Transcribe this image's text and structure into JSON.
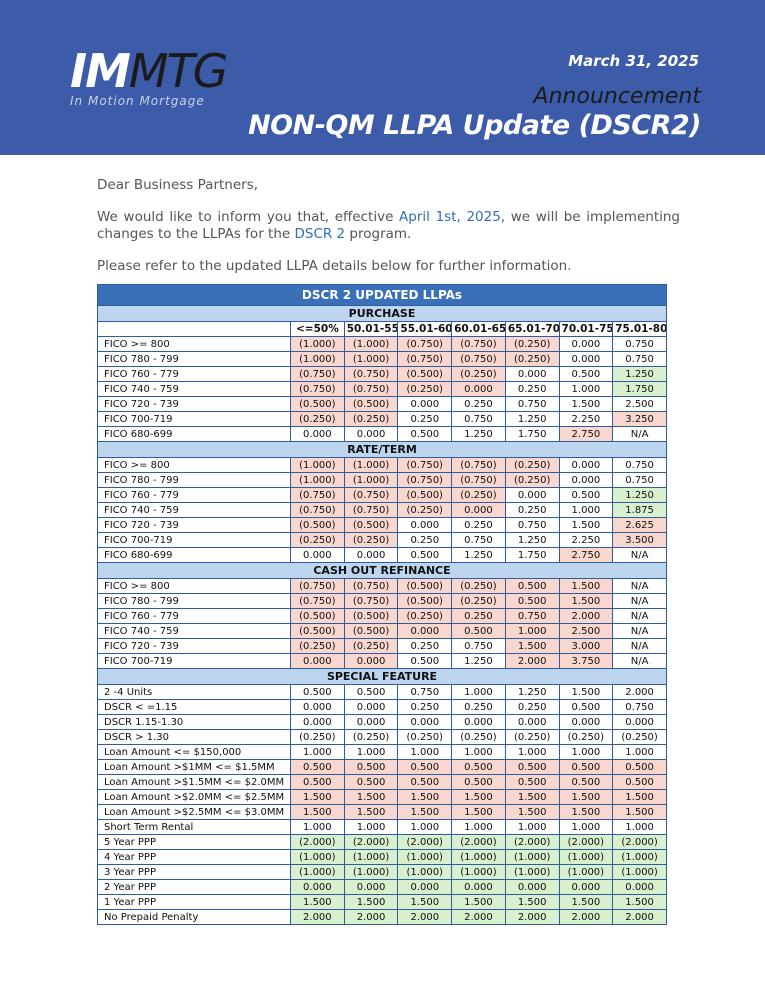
{
  "header": {
    "logo_main": "IM",
    "logo_accent": "MTG",
    "logo_tagline": "In Motion Mortgage",
    "date": "March 31, 2025",
    "announcement": "Announcement",
    "title": "NON-QM LLPA Update (DSCR2)"
  },
  "letter": {
    "greeting": "Dear Business Partners,",
    "p2_a": "We would like to inform you that, effective ",
    "p2_date": "April 1st, 2025",
    "p2_b": ", we will be implementing changes to the LLPAs for the ",
    "p2_program": "DSCR 2",
    "p2_c": " program.",
    "p3": "Please refer to the updated LLPA details below for further information."
  },
  "table": {
    "title": "DSCR 2 UPDATED LLPAs",
    "columns": [
      "",
      "<=50%",
      "50.01-55",
      "55.01-60",
      "60.01-65",
      "65.01-70",
      "70.01-75",
      "75.01-80"
    ],
    "sections": [
      {
        "name": "PURCHASE",
        "rows": [
          {
            "label": "FICO >= 800",
            "v": [
              "(1.000)",
              "(1.000)",
              "(0.750)",
              "(0.750)",
              "(0.250)",
              "0.000",
              "0.750"
            ],
            "h": [
              "r",
              "r",
              "r",
              "r",
              "r",
              "",
              ""
            ]
          },
          {
            "label": "FICO 780 - 799",
            "v": [
              "(1.000)",
              "(1.000)",
              "(0.750)",
              "(0.750)",
              "(0.250)",
              "0.000",
              "0.750"
            ],
            "h": [
              "r",
              "r",
              "r",
              "r",
              "r",
              "",
              ""
            ]
          },
          {
            "label": "FICO 760 - 779",
            "v": [
              "(0.750)",
              "(0.750)",
              "(0.500)",
              "(0.250)",
              "0.000",
              "0.500",
              "1.250"
            ],
            "h": [
              "r",
              "r",
              "r",
              "r",
              "",
              "",
              "g"
            ]
          },
          {
            "label": "FICO 740 - 759",
            "v": [
              "(0.750)",
              "(0.750)",
              "(0.250)",
              "0.000",
              "0.250",
              "1.000",
              "1.750"
            ],
            "h": [
              "r",
              "r",
              "r",
              "r",
              "",
              "",
              "g"
            ]
          },
          {
            "label": "FICO 720 - 739",
            "v": [
              "(0.500)",
              "(0.500)",
              "0.000",
              "0.250",
              "0.750",
              "1.500",
              "2.500"
            ],
            "h": [
              "r",
              "r",
              "",
              "",
              "",
              "",
              ""
            ]
          },
          {
            "label": "FICO 700-719",
            "v": [
              "(0.250)",
              "(0.250)",
              "0.250",
              "0.750",
              "1.250",
              "2.250",
              "3.250"
            ],
            "h": [
              "r",
              "r",
              "",
              "",
              "",
              "",
              "r"
            ]
          },
          {
            "label": "FICO 680-699",
            "v": [
              "0.000",
              "0.000",
              "0.500",
              "1.250",
              "1.750",
              "2.750",
              "N/A"
            ],
            "h": [
              "",
              "",
              "",
              "",
              "",
              "r",
              ""
            ]
          }
        ]
      },
      {
        "name": "RATE/TERM",
        "rows": [
          {
            "label": "FICO >= 800",
            "v": [
              "(1.000)",
              "(1.000)",
              "(0.750)",
              "(0.750)",
              "(0.250)",
              "0.000",
              "0.750"
            ],
            "h": [
              "r",
              "r",
              "r",
              "r",
              "r",
              "",
              ""
            ]
          },
          {
            "label": "FICO 780 - 799",
            "v": [
              "(1.000)",
              "(1.000)",
              "(0.750)",
              "(0.750)",
              "(0.250)",
              "0.000",
              "0.750"
            ],
            "h": [
              "r",
              "r",
              "r",
              "r",
              "r",
              "",
              ""
            ]
          },
          {
            "label": "FICO 760 - 779",
            "v": [
              "(0.750)",
              "(0.750)",
              "(0.500)",
              "(0.250)",
              "0.000",
              "0.500",
              "1.250"
            ],
            "h": [
              "r",
              "r",
              "r",
              "r",
              "",
              "",
              "g"
            ]
          },
          {
            "label": "FICO 740 - 759",
            "v": [
              "(0.750)",
              "(0.750)",
              "(0.250)",
              "0.000",
              "0.250",
              "1.000",
              "1.875"
            ],
            "h": [
              "r",
              "r",
              "r",
              "r",
              "",
              "",
              "g"
            ]
          },
          {
            "label": "FICO 720 - 739",
            "v": [
              "(0.500)",
              "(0.500)",
              "0.000",
              "0.250",
              "0.750",
              "1.500",
              "2.625"
            ],
            "h": [
              "r",
              "r",
              "",
              "",
              "",
              "",
              "r"
            ]
          },
          {
            "label": "FICO 700-719",
            "v": [
              "(0.250)",
              "(0.250)",
              "0.250",
              "0.750",
              "1.250",
              "2.250",
              "3.500"
            ],
            "h": [
              "r",
              "r",
              "",
              "",
              "",
              "",
              "r"
            ]
          },
          {
            "label": "FICO 680-699",
            "v": [
              "0.000",
              "0.000",
              "0.500",
              "1.250",
              "1.750",
              "2.750",
              "N/A"
            ],
            "h": [
              "",
              "",
              "",
              "",
              "",
              "r",
              ""
            ]
          }
        ]
      },
      {
        "name": "CASH OUT REFINANCE",
        "rows": [
          {
            "label": "FICO >= 800",
            "v": [
              "(0.750)",
              "(0.750)",
              "(0.500)",
              "(0.250)",
              "0.500",
              "1.500",
              "N/A"
            ],
            "h": [
              "r",
              "r",
              "r",
              "r",
              "r",
              "r",
              ""
            ]
          },
          {
            "label": "FICO 780 - 799",
            "v": [
              "(0.750)",
              "(0.750)",
              "(0.500)",
              "(0.250)",
              "0.500",
              "1.500",
              "N/A"
            ],
            "h": [
              "r",
              "r",
              "r",
              "r",
              "r",
              "r",
              ""
            ]
          },
          {
            "label": "FICO 760 - 779",
            "v": [
              "(0.500)",
              "(0.500)",
              "(0.250)",
              "0.250",
              "0.750",
              "2.000",
              "N/A"
            ],
            "h": [
              "r",
              "r",
              "r",
              "r",
              "r",
              "r",
              ""
            ]
          },
          {
            "label": "FICO 740 - 759",
            "v": [
              "(0.500)",
              "(0.500)",
              "0.000",
              "0.500",
              "1.000",
              "2.500",
              "N/A"
            ],
            "h": [
              "r",
              "r",
              "r",
              "r",
              "r",
              "r",
              ""
            ]
          },
          {
            "label": "FICO 720 - 739",
            "v": [
              "(0.250)",
              "(0.250)",
              "0.250",
              "0.750",
              "1.500",
              "3.000",
              "N/A"
            ],
            "h": [
              "r",
              "r",
              "",
              "",
              "r",
              "r",
              ""
            ]
          },
          {
            "label": "FICO 700-719",
            "v": [
              "0.000",
              "0.000",
              "0.500",
              "1.250",
              "2.000",
              "3.750",
              "N/A"
            ],
            "h": [
              "r",
              "r",
              "",
              "",
              "r",
              "r",
              ""
            ]
          }
        ]
      },
      {
        "name": "SPECIAL FEATURE",
        "rows": [
          {
            "label": "2 -4 Units",
            "v": [
              "0.500",
              "0.500",
              "0.750",
              "1.000",
              "1.250",
              "1.500",
              "2.000"
            ],
            "h": [
              "",
              "",
              "",
              "",
              "",
              "",
              ""
            ]
          },
          {
            "label": "DSCR < =1.15",
            "v": [
              "0.000",
              "0.000",
              "0.250",
              "0.250",
              "0.250",
              "0.500",
              "0.750"
            ],
            "h": [
              "",
              "",
              "",
              "",
              "",
              "",
              ""
            ]
          },
          {
            "label": "DSCR 1.15-1.30",
            "v": [
              "0.000",
              "0.000",
              "0.000",
              "0.000",
              "0.000",
              "0.000",
              "0.000"
            ],
            "h": [
              "",
              "",
              "",
              "",
              "",
              "",
              ""
            ]
          },
          {
            "label": "DSCR > 1.30",
            "v": [
              "(0.250)",
              "(0.250)",
              "(0.250)",
              "(0.250)",
              "(0.250)",
              "(0.250)",
              "(0.250)"
            ],
            "h": [
              "",
              "",
              "",
              "",
              "",
              "",
              ""
            ]
          },
          {
            "label": "Loan Amount <= $150,000",
            "v": [
              "1.000",
              "1.000",
              "1.000",
              "1.000",
              "1.000",
              "1.000",
              "1.000"
            ],
            "h": [
              "",
              "",
              "",
              "",
              "",
              "",
              ""
            ]
          },
          {
            "label": "Loan Amount >$1MM <= $1.5MM",
            "v": [
              "0.500",
              "0.500",
              "0.500",
              "0.500",
              "0.500",
              "0.500",
              "0.500"
            ],
            "h": [
              "r",
              "r",
              "r",
              "r",
              "r",
              "r",
              "r"
            ]
          },
          {
            "label": "Loan Amount >$1.5MM <= $2.0MM",
            "v": [
              "0.500",
              "0.500",
              "0.500",
              "0.500",
              "0.500",
              "0.500",
              "0.500"
            ],
            "h": [
              "r",
              "r",
              "r",
              "r",
              "r",
              "r",
              "r"
            ]
          },
          {
            "label": "Loan Amount >$2.0MM <= $2.5MM",
            "v": [
              "1.500",
              "1.500",
              "1.500",
              "1.500",
              "1.500",
              "1.500",
              "1.500"
            ],
            "h": [
              "r",
              "r",
              "r",
              "r",
              "r",
              "r",
              "r"
            ]
          },
          {
            "label": "Loan Amount >$2.5MM <= $3.0MM",
            "v": [
              "1.500",
              "1.500",
              "1.500",
              "1.500",
              "1.500",
              "1.500",
              "1.500"
            ],
            "h": [
              "r",
              "r",
              "r",
              "r",
              "r",
              "r",
              "r"
            ]
          },
          {
            "label": "Short Term Rental",
            "v": [
              "1.000",
              "1.000",
              "1.000",
              "1.000",
              "1.000",
              "1.000",
              "1.000"
            ],
            "h": [
              "",
              "",
              "",
              "",
              "",
              "",
              ""
            ]
          },
          {
            "label": "5 Year PPP",
            "v": [
              "(2.000)",
              "(2.000)",
              "(2.000)",
              "(2.000)",
              "(2.000)",
              "(2.000)",
              "(2.000)"
            ],
            "h": [
              "g",
              "g",
              "g",
              "g",
              "g",
              "g",
              "g"
            ]
          },
          {
            "label": "4 Year PPP",
            "v": [
              "(1.000)",
              "(1.000)",
              "(1.000)",
              "(1.000)",
              "(1.000)",
              "(1.000)",
              "(1.000)"
            ],
            "h": [
              "g",
              "g",
              "g",
              "g",
              "g",
              "g",
              "g"
            ]
          },
          {
            "label": "3 Year PPP",
            "v": [
              "(1.000)",
              "(1.000)",
              "(1.000)",
              "(1.000)",
              "(1.000)",
              "(1.000)",
              "(1.000)"
            ],
            "h": [
              "g",
              "g",
              "g",
              "g",
              "g",
              "g",
              "g"
            ]
          },
          {
            "label": "2 Year PPP",
            "v": [
              "0.000",
              "0.000",
              "0.000",
              "0.000",
              "0.000",
              "0.000",
              "0.000"
            ],
            "h": [
              "g",
              "g",
              "g",
              "g",
              "g",
              "g",
              "g"
            ]
          },
          {
            "label": "1 Year PPP",
            "v": [
              "1.500",
              "1.500",
              "1.500",
              "1.500",
              "1.500",
              "1.500",
              "1.500"
            ],
            "h": [
              "g",
              "g",
              "g",
              "g",
              "g",
              "g",
              "g"
            ]
          },
          {
            "label": "No Prepaid Penalty",
            "v": [
              "2.000",
              "2.000",
              "2.000",
              "2.000",
              "2.000",
              "2.000",
              "2.000"
            ],
            "h": [
              "g",
              "g",
              "g",
              "g",
              "g",
              "g",
              "g"
            ]
          }
        ]
      }
    ]
  }
}
